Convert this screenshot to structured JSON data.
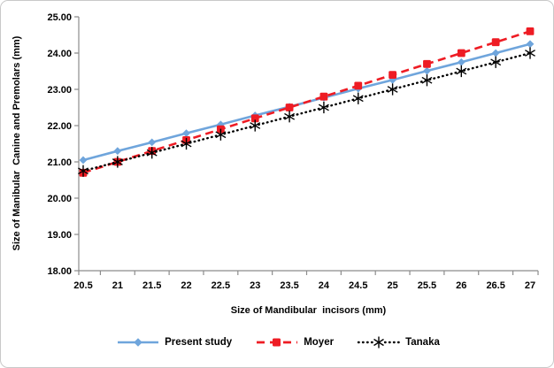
{
  "chart_data": {
    "type": "line",
    "title": "",
    "xlabel": "Size of Mandibular  incisors (mm)",
    "ylabel": "Size of Manibular  Canine and Premolars (mm)",
    "xlim": [
      20.5,
      27
    ],
    "ylim": [
      18,
      25
    ],
    "grid": false,
    "legend_position": "bottom",
    "x": [
      20.5,
      21,
      21.5,
      22,
      22.5,
      23,
      23.5,
      24,
      24.5,
      25,
      25.5,
      26,
      26.5,
      27
    ],
    "x_tick_labels": [
      "20.5",
      "21",
      "21.5",
      "22",
      "22.5",
      "23",
      "23.5",
      "24",
      "24.5",
      "25",
      "25.5",
      "26",
      "26.5",
      "27"
    ],
    "y_ticks": [
      18,
      19,
      20,
      21,
      22,
      23,
      24,
      25
    ],
    "y_tick_labels": [
      "18.00",
      "19.00",
      "20.00",
      "21.00",
      "22.00",
      "23.00",
      "24.00",
      "25.00"
    ],
    "series": [
      {
        "name": "Present study",
        "color": "#6fa5dc",
        "line_style": "solid",
        "marker": "diamond",
        "values": [
          21.05,
          21.3,
          21.54,
          21.79,
          22.03,
          22.28,
          22.52,
          22.77,
          23.02,
          23.26,
          23.51,
          23.75,
          24.0,
          24.25
        ]
      },
      {
        "name": "Moyer",
        "color": "#ee1c24",
        "line_style": "dashed",
        "marker": "square",
        "values": [
          20.7,
          21.0,
          21.3,
          21.6,
          21.9,
          22.2,
          22.5,
          22.8,
          23.1,
          23.4,
          23.7,
          24.0,
          24.3,
          24.6
        ]
      },
      {
        "name": "Tanaka",
        "color": "#000000",
        "line_style": "dotted",
        "marker": "asterisk",
        "values": [
          20.75,
          21.0,
          21.25,
          21.5,
          21.75,
          22.0,
          22.25,
          22.5,
          22.75,
          23.0,
          23.25,
          23.5,
          23.75,
          24.0
        ]
      }
    ],
    "colors": {
      "axis": "#8c8c8c",
      "tick_text": "#000000",
      "background": "#ffffff",
      "frame_border": "#c9c9c9"
    }
  },
  "legend": {
    "items": [
      {
        "label": "Present study"
      },
      {
        "label": "Moyer"
      },
      {
        "label": "Tanaka"
      }
    ]
  }
}
